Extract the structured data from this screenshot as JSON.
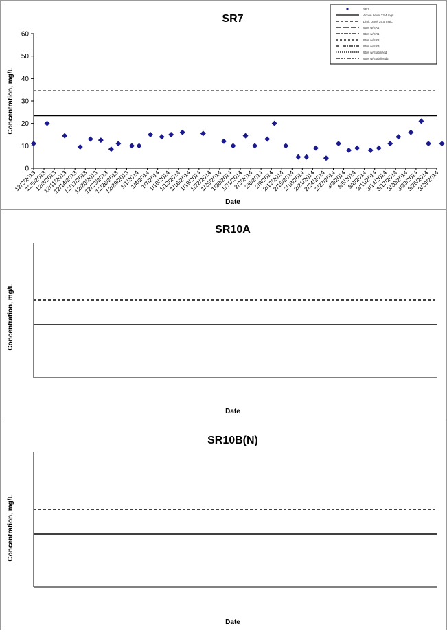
{
  "legend_labels": [
    "SR7",
    "Action Level 23.4 mg/L",
    "Limit Level 34.5 mg/L",
    "95% w/SR4",
    "95% w/SR1",
    "95% w/SR2",
    "95% w/SR3",
    "95% w/Stabilized",
    "95% w/Stabilized2"
  ],
  "x_dates": [
    "12/2/2013",
    "12/5/2013",
    "12/8/2013",
    "12/11/2013",
    "12/14/2013",
    "12/17/2013",
    "12/20/2013",
    "12/23/2013",
    "12/26/2013",
    "12/29/2013",
    "1/1/2014",
    "1/4/2014",
    "1/7/2014",
    "1/10/2014",
    "1/13/2014",
    "1/16/2014",
    "1/19/2014",
    "1/22/2014",
    "1/25/2014",
    "1/28/2014",
    "1/31/2014",
    "2/3/2014",
    "2/6/2014",
    "2/9/2014",
    "2/12/2014",
    "2/15/2014",
    "2/18/2014",
    "2/21/2014",
    "2/24/2014",
    "2/27/2014",
    "3/2/2014",
    "3/5/2014",
    "3/8/2014",
    "3/11/2014",
    "3/14/2014",
    "3/17/2014",
    "3/20/2014",
    "3/23/2014",
    "3/26/2014",
    "3/29/2014"
  ],
  "chart_data": [
    {
      "type": "scatter",
      "title": "SR7",
      "xlabel": "Date",
      "ylabel": "Concentration, mg/L",
      "ylim": [
        0,
        60
      ],
      "yticks": [
        0,
        10,
        20,
        30,
        40,
        50,
        60
      ],
      "action_level": 23.4,
      "limit_level": 34.5,
      "legend_position": "top-right",
      "series": [
        {
          "marker": "diamond",
          "x": [
            0,
            1.3,
            3,
            4.5,
            5.5,
            6.5,
            7.5,
            8.2,
            9.5,
            10.2,
            11.3,
            12.4,
            13.3,
            14.4,
            16.4,
            18.4,
            19.3,
            20.5,
            21.4,
            22.6,
            23.3,
            24.4,
            25.6,
            26.4,
            27.3,
            28.3,
            29.5,
            30.5,
            31.3,
            32.6,
            33.4,
            34.5,
            35.3,
            36.5,
            37.5,
            38.2,
            39.5
          ],
          "y": [
            11,
            20,
            14.5,
            9.5,
            13,
            12.5,
            8.5,
            11,
            10,
            10,
            15,
            14,
            15,
            16,
            15.5,
            12,
            10,
            14.5,
            10,
            13,
            20,
            10,
            5,
            5,
            9,
            4.5,
            11,
            8,
            9,
            8,
            9,
            11,
            14,
            16,
            21,
            11,
            11
          ]
        }
      ]
    }
  ]
}
